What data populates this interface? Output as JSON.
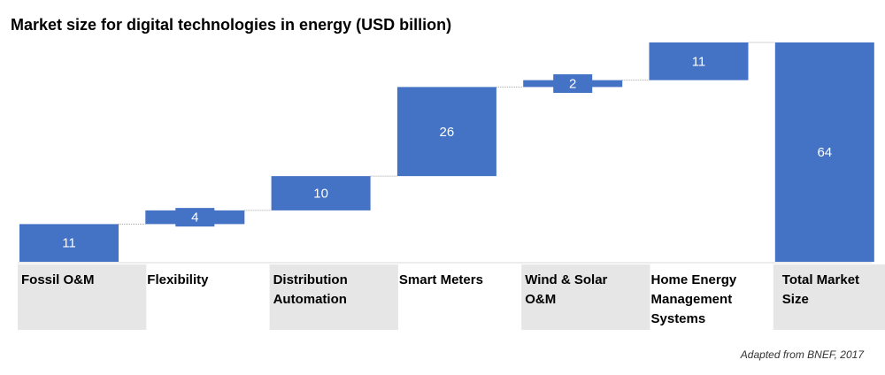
{
  "chart_data": {
    "type": "bar",
    "subtype": "waterfall",
    "title": "Market size for digital technologies in energy (USD billion)",
    "categories": [
      "Fossil O&M",
      "Flexibility",
      "Distribution Automation",
      "Smart Meters",
      "Wind & Solar O&M",
      "Home Energy Management Systems",
      "Total Market Size"
    ],
    "values": [
      11,
      4,
      10,
      26,
      2,
      11,
      64
    ],
    "labels": [
      "11",
      "4",
      "10",
      "26",
      "2",
      "11",
      "64"
    ],
    "total_index": 6,
    "ylim": [
      0,
      64
    ],
    "grid": false,
    "legend": "none",
    "bar_color": "#4472c4",
    "connector_color": "#a6a6a6",
    "label_box_color": "#e7e6e6"
  },
  "source": "Adapted from BNEF, 2017"
}
